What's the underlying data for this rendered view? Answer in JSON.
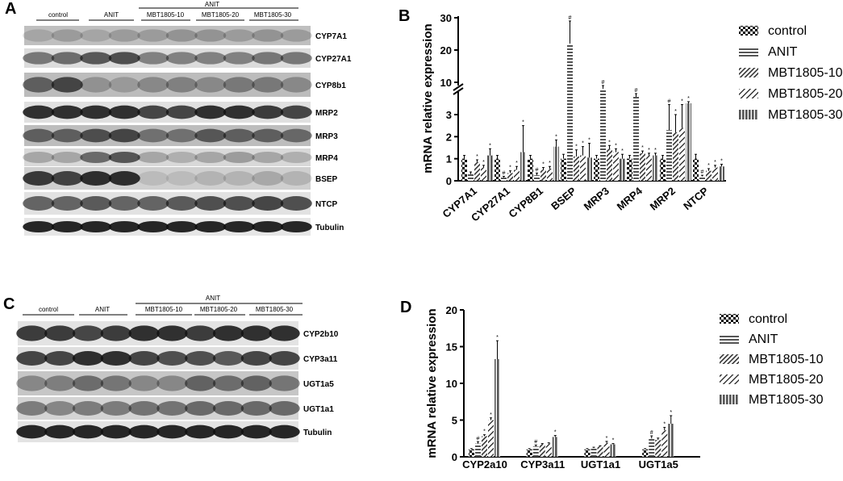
{
  "panels": {
    "A": "A",
    "B": "B",
    "C": "C",
    "D": "D"
  },
  "blots": {
    "top": {
      "groups": {
        "control": "control",
        "anit": "ANIT",
        "anit_header": "ANIT",
        "d10": "MBT1805-10",
        "d20": "MBT1805-20",
        "d30": "MBT1805-30"
      },
      "bands": [
        "CYP7A1",
        "CYP27A1",
        "CYP8b1",
        "MRP2",
        "MRP3",
        "MRP4",
        "BSEP",
        "NTCP",
        "Tubulin"
      ]
    },
    "bottom": {
      "groups": {
        "control": "control",
        "anit": "ANIT",
        "anit_header": "ANIT",
        "d10": "MBT1805-10",
        "d20": "MBT1805-20",
        "d30": "MBT1805-30"
      },
      "bands": [
        "CYP2b10",
        "CYP3a11",
        "UGT1a5",
        "UGT1a1",
        "Tubulin"
      ]
    }
  },
  "chart_data": [
    {
      "type": "bar",
      "panel": "B",
      "ylabel": "mRNA relative expression",
      "categories": [
        "CYP7A1",
        "CYP27A1",
        "CYP8B1",
        "BSEP",
        "MRP3",
        "MRP4",
        "MRP2",
        "NTCP"
      ],
      "series": [
        {
          "name": "control",
          "values": [
            1.0,
            1.0,
            1.0,
            1.0,
            1.0,
            1.0,
            1.0,
            1.0
          ],
          "errors": [
            0.15,
            0.15,
            0.15,
            0.2,
            0.15,
            0.15,
            0.15,
            0.2
          ]
        },
        {
          "name": "ANIT",
          "values": [
            0.3,
            0.15,
            0.25,
            22.0,
            8.0,
            5.5,
            2.3,
            0.2
          ],
          "errors": [
            0.1,
            0.05,
            0.1,
            7.0,
            1.0,
            1.0,
            0.8,
            0.05
          ]
        },
        {
          "name": "MBT1805-10",
          "values": [
            0.85,
            0.35,
            0.5,
            1.1,
            1.45,
            1.25,
            2.2,
            0.45
          ],
          "errors": [
            0.1,
            0.1,
            0.1,
            0.3,
            0.15,
            0.1,
            0.8,
            0.1
          ]
        },
        {
          "name": "MBT1805-20",
          "values": [
            0.6,
            0.5,
            0.55,
            1.15,
            1.3,
            1.15,
            2.4,
            0.6
          ],
          "errors": [
            0.1,
            0.15,
            0.1,
            0.4,
            0.15,
            0.1,
            0.7,
            0.1
          ]
        },
        {
          "name": "MBT1805-30",
          "values": [
            1.15,
            1.3,
            1.55,
            1.05,
            1.0,
            1.15,
            3.5,
            0.65
          ],
          "errors": [
            0.3,
            1.2,
            0.3,
            0.65,
            0.2,
            0.1,
            0.5,
            0.1
          ]
        }
      ],
      "broken_axis": {
        "lower_range": [
          0,
          3
        ],
        "upper_range": [
          5,
          30
        ]
      },
      "yticks_lower": [
        0,
        1,
        2,
        3
      ],
      "yticks_upper": [
        10,
        20,
        30
      ],
      "markers": [
        [
          "",
          "",
          "",
          "",
          "",
          "",
          "",
          ""
        ],
        [
          "",
          "#",
          "#",
          "#",
          "#",
          "#",
          "#",
          "#"
        ],
        [
          "*",
          "*",
          "*",
          "*",
          "*",
          "*",
          "*",
          "*"
        ],
        [
          "*",
          "*",
          "*",
          "*",
          "*",
          "*",
          "*",
          "*"
        ],
        [
          "*",
          "*",
          "*",
          "*",
          "*",
          "*",
          "*",
          "*"
        ]
      ],
      "legend_position": "right"
    },
    {
      "type": "bar",
      "panel": "D",
      "ylabel": "mRNA relative expression",
      "categories": [
        "CYP2a10",
        "CYP3a11",
        "UGT1a1",
        "UGT1a5"
      ],
      "series": [
        {
          "name": "control",
          "values": [
            1.0,
            1.0,
            1.0,
            1.0
          ],
          "errors": [
            0.1,
            0.1,
            0.1,
            0.1
          ]
        },
        {
          "name": "ANIT",
          "values": [
            1.8,
            1.4,
            1.2,
            2.5
          ],
          "errors": [
            0.25,
            0.2,
            0.1,
            0.35
          ]
        },
        {
          "name": "MBT1805-10",
          "values": [
            2.8,
            1.7,
            1.4,
            2.3
          ],
          "errors": [
            0.2,
            0.1,
            0.1,
            0.25
          ]
        },
        {
          "name": "MBT1805-20",
          "values": [
            5.0,
            1.8,
            1.9,
            3.6
          ],
          "errors": [
            0.3,
            0.1,
            0.2,
            0.4
          ]
        },
        {
          "name": "MBT1805-30",
          "values": [
            13.3,
            2.7,
            1.7,
            4.5
          ],
          "errors": [
            2.5,
            0.2,
            0.1,
            1.1
          ]
        }
      ],
      "yticks": [
        0,
        5,
        10,
        15,
        20
      ],
      "ylim": [
        0,
        20
      ],
      "markers": [
        [
          "",
          "",
          "",
          ""
        ],
        [
          "#",
          "#",
          "",
          "#"
        ],
        [
          "*",
          "",
          "",
          ""
        ],
        [
          "*",
          "",
          "*",
          "*"
        ],
        [
          "*",
          "*",
          "*",
          "*"
        ]
      ],
      "legend_position": "right"
    }
  ]
}
